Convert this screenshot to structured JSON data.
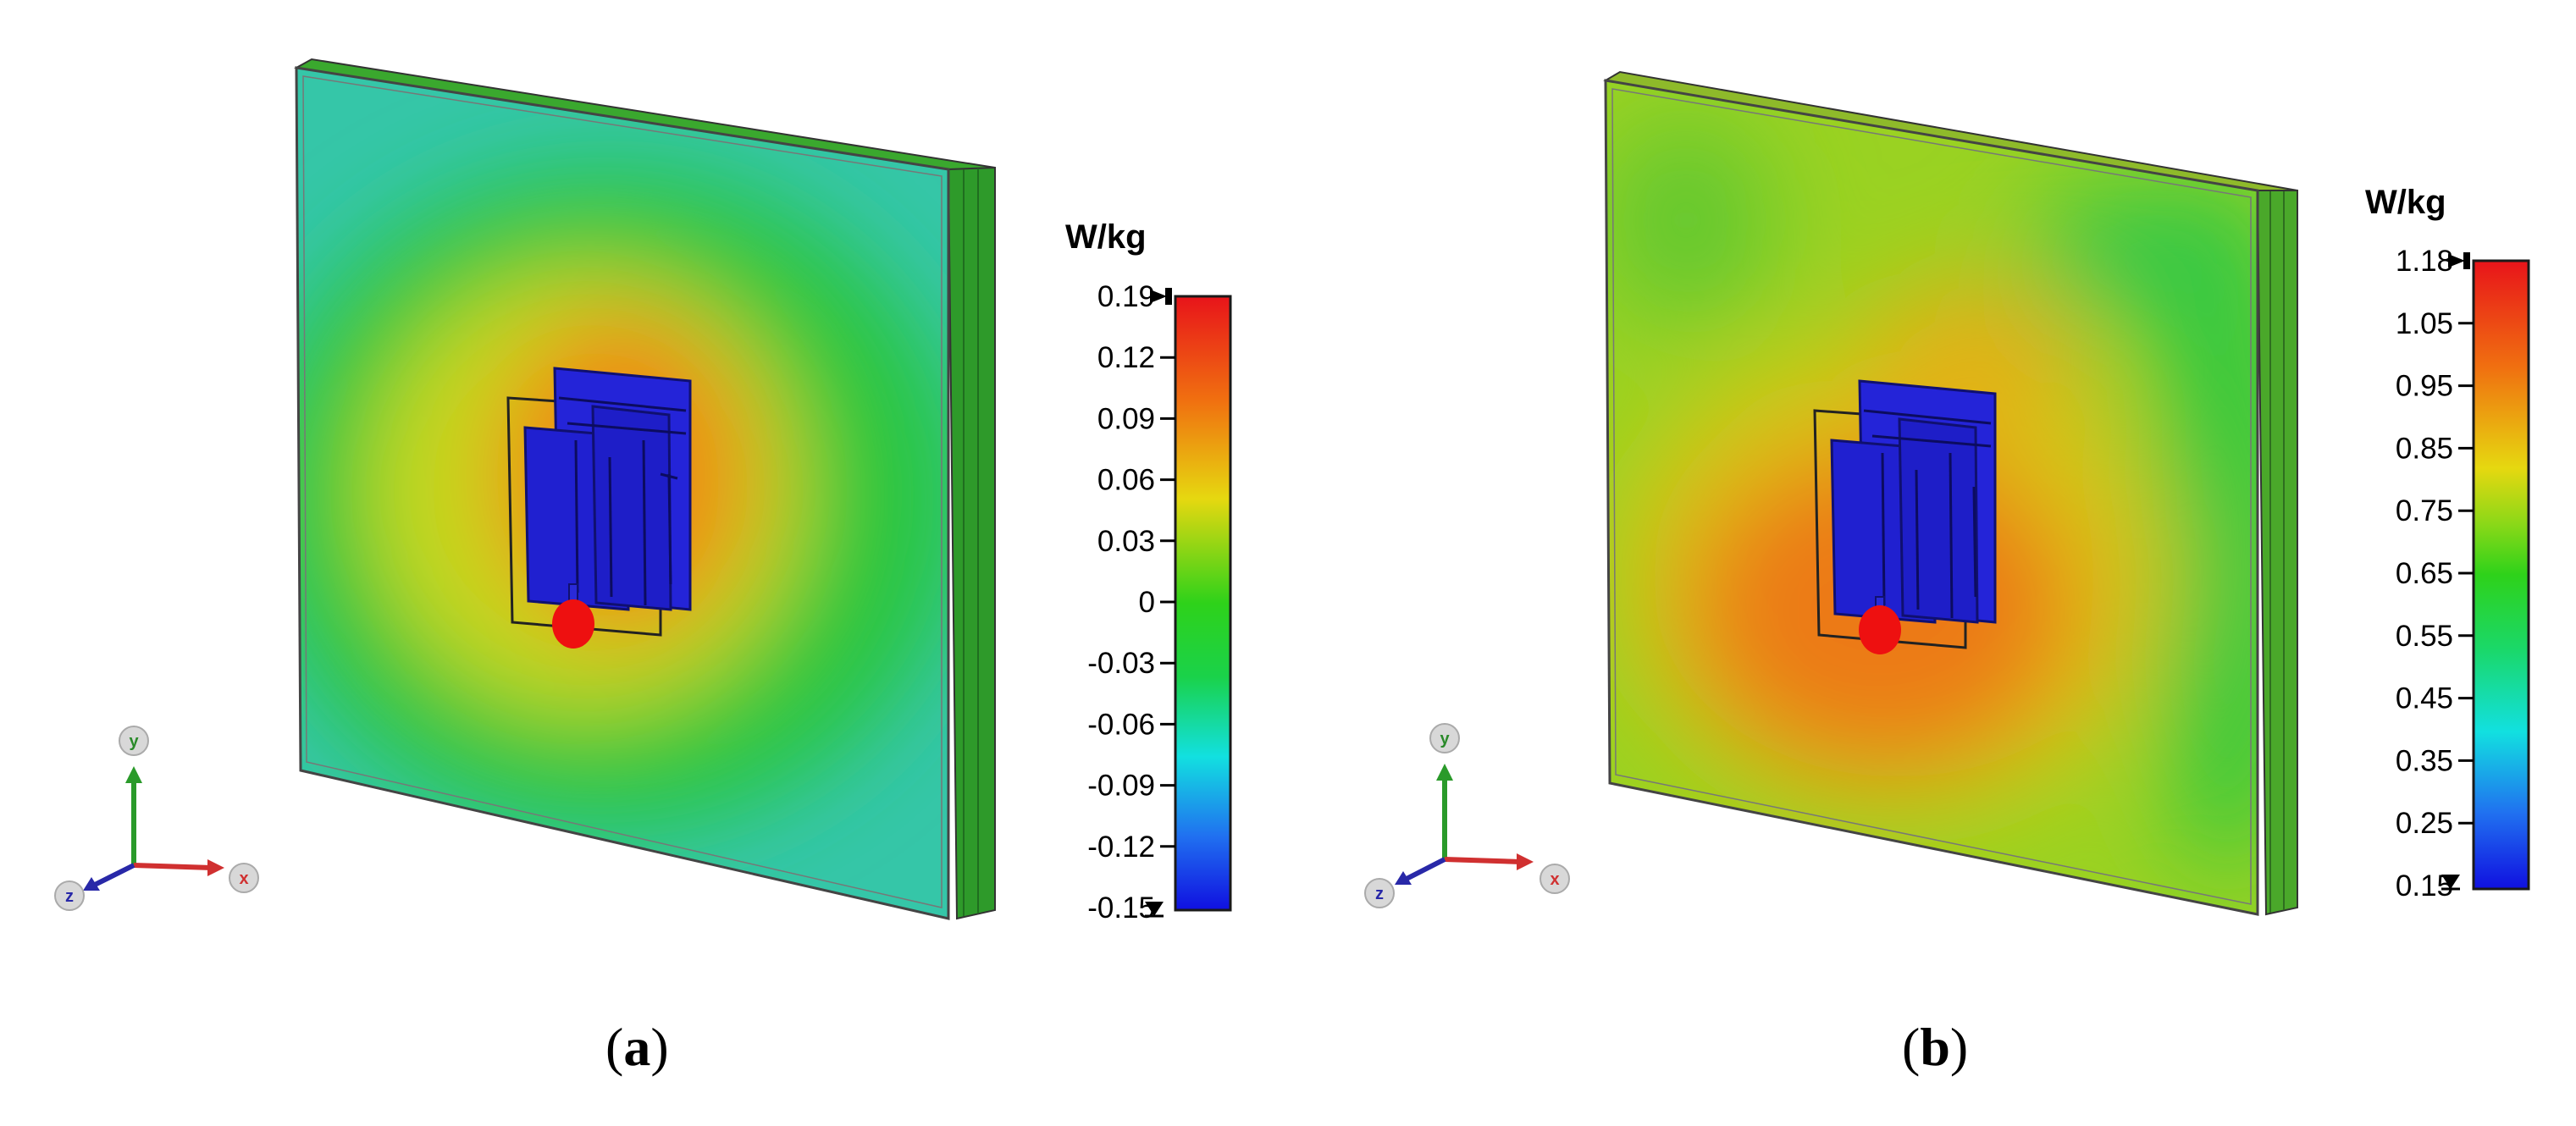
{
  "panels": [
    {
      "id": "a",
      "unit": "W/kg",
      "ticks": [
        "0.19",
        "0.12",
        "0.09",
        "0.06",
        "0.03",
        "0",
        "-0.03",
        "-0.06",
        "-0.09",
        "-0.12",
        "-0.15"
      ],
      "caption_open": "(",
      "caption_letter": "a",
      "caption_close": ")",
      "axes": {
        "x": "x",
        "y": "y",
        "z": "z"
      }
    },
    {
      "id": "b",
      "unit": "W/kg",
      "ticks": [
        "1.18",
        "1.05",
        "0.95",
        "0.85",
        "0.75",
        "0.65",
        "0.55",
        "0.45",
        "0.35",
        "0.25",
        "0.15"
      ],
      "caption_open": "(",
      "caption_letter": "b",
      "caption_close": ")",
      "axes": {
        "x": "x",
        "y": "y",
        "z": "z"
      }
    }
  ]
}
